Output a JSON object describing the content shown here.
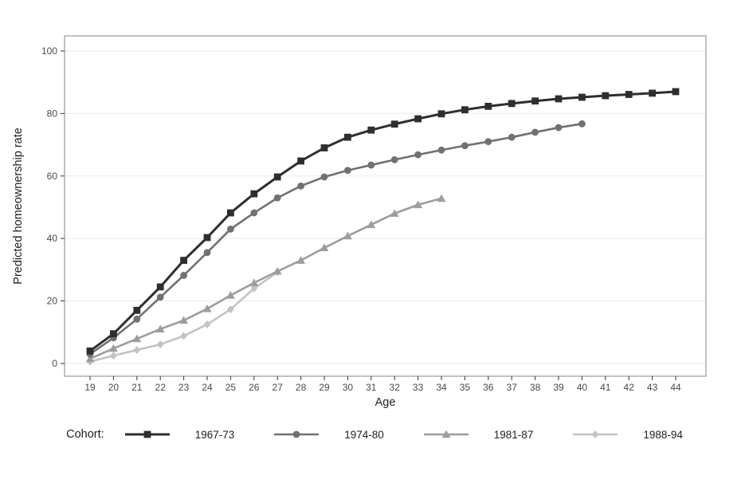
{
  "chart_data": {
    "type": "line",
    "title": "",
    "xlabel": "Age",
    "ylabel": "Predicted homeownership rate",
    "x_ticks": [
      19,
      20,
      21,
      22,
      23,
      24,
      25,
      26,
      27,
      28,
      29,
      30,
      31,
      32,
      33,
      34,
      35,
      36,
      37,
      38,
      39,
      40,
      41,
      42,
      43,
      44
    ],
    "y_ticks": [
      0,
      20,
      40,
      60,
      80,
      100
    ],
    "ylim": [
      0,
      100
    ],
    "xlim": [
      18.5,
      45.3
    ],
    "grid": "horizontal major gridlines only, light gray, white panel with gray border",
    "legend": {
      "title": "Cohort:",
      "position": "bottom"
    },
    "colors": {
      "panel_border": "#999999",
      "gridline": "#ebebeb",
      "tick": "#333333",
      "tick_text": "#4a4a4a",
      "axis_text": "#1f1f1f"
    },
    "series": [
      {
        "name": "1967-73",
        "marker": "square",
        "color": "#2e2e2e",
        "ages": [
          19,
          20,
          21,
          22,
          23,
          24,
          25,
          26,
          27,
          28,
          29,
          30,
          31,
          32,
          33,
          34,
          35,
          36,
          37,
          38,
          39,
          40,
          41,
          42,
          43,
          44
        ],
        "values": [
          4,
          9.5,
          17,
          24.5,
          33,
          40.3,
          48.2,
          54.3,
          59.7,
          64.8,
          69,
          72.4,
          74.7,
          76.6,
          78.3,
          79.9,
          81.2,
          82.3,
          83.2,
          84,
          84.7,
          85.2,
          85.7,
          86.1,
          86.5,
          87
        ]
      },
      {
        "name": "1974-80",
        "marker": "circle",
        "color": "#717171",
        "ages": [
          19,
          20,
          21,
          22,
          23,
          24,
          25,
          26,
          27,
          28,
          29,
          30,
          31,
          32,
          33,
          34,
          35,
          36,
          37,
          38,
          39,
          40
        ],
        "values": [
          3,
          8.2,
          14.2,
          21.2,
          28.2,
          35.5,
          43,
          48.2,
          53,
          56.8,
          59.7,
          61.8,
          63.5,
          65.2,
          66.8,
          68.3,
          69.7,
          71,
          72.4,
          74,
          75.5,
          76.7
        ]
      },
      {
        "name": "1981-87",
        "marker": "triangle",
        "color": "#9d9d9d",
        "ages": [
          19,
          20,
          21,
          22,
          23,
          24,
          25,
          26,
          27,
          28,
          29,
          30,
          31,
          32,
          33,
          34
        ],
        "values": [
          1.5,
          4.8,
          7.9,
          11,
          13.8,
          17.5,
          21.8,
          25.8,
          29.5,
          33,
          37,
          40.8,
          44.4,
          48,
          50.8,
          52.8
        ]
      },
      {
        "name": "1988-94",
        "marker": "diamond",
        "color": "#c3c3c3",
        "ages": [
          19,
          20,
          21,
          22,
          23,
          24,
          25,
          26,
          27
        ],
        "values": [
          0.6,
          2.5,
          4.3,
          6.1,
          8.8,
          12.5,
          17.3,
          24,
          29.2
        ]
      }
    ]
  }
}
